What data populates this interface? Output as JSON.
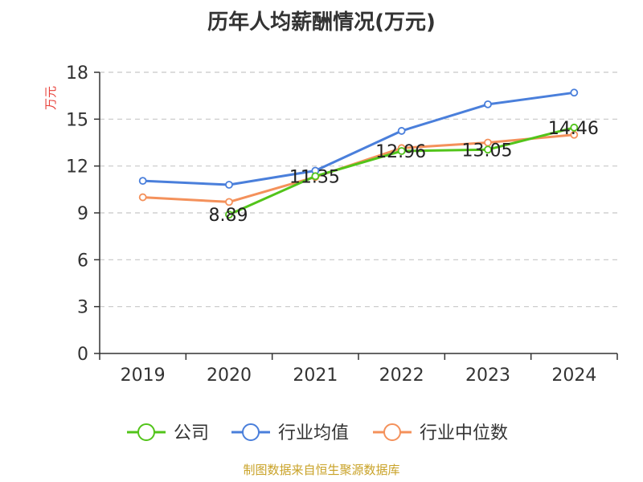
{
  "chart_data": {
    "type": "line",
    "title": "历年人均薪酬情况(万元)",
    "ylabel": "万元",
    "xlabel": "",
    "categories": [
      "2019",
      "2020",
      "2021",
      "2022",
      "2023",
      "2024"
    ],
    "ylim": [
      0,
      18
    ],
    "yticks": [
      0,
      3,
      6,
      9,
      12,
      15,
      18
    ],
    "grid": true,
    "legend_position": "bottom",
    "series": [
      {
        "name": "公司",
        "color": "#52c41a",
        "values": [
          null,
          8.89,
          11.35,
          12.96,
          13.05,
          14.46
        ],
        "labels": true
      },
      {
        "name": "行业均值",
        "color": "#4a7fdb",
        "values": [
          11.05,
          10.8,
          11.7,
          14.25,
          15.95,
          16.7
        ],
        "labels": false
      },
      {
        "name": "行业中位数",
        "color": "#f4915b",
        "values": [
          10.0,
          9.7,
          11.3,
          13.15,
          13.5,
          14.0
        ],
        "labels": false
      }
    ]
  },
  "ylabel_color": "#e8413a",
  "footer": {
    "text": "制图数据来自恒生聚源数据库",
    "color": "#c9a227"
  }
}
